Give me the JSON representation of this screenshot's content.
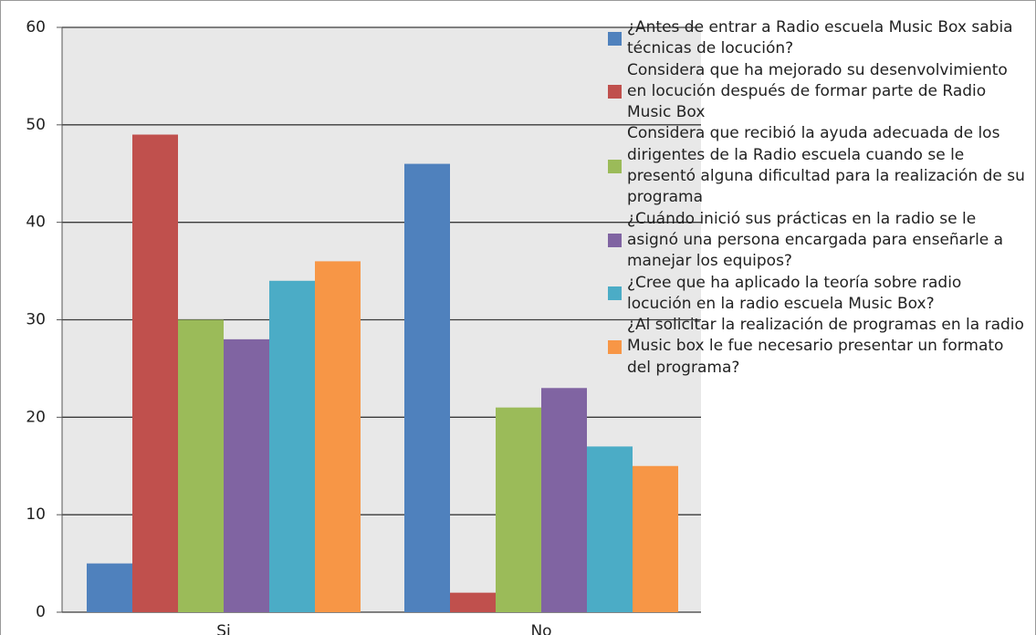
{
  "chart_data": {
    "type": "bar",
    "categories": [
      "Si",
      "No"
    ],
    "series": [
      {
        "name": "¿Antes de entrar a Radio escuela Music Box sabia técnicas de locución?",
        "color": "#4f81bd",
        "values": [
          5,
          46
        ]
      },
      {
        "name": "Considera que ha mejorado su desenvolvimiento en locución después de formar parte de Radio Music Box",
        "color": "#c0504d",
        "values": [
          49,
          2
        ]
      },
      {
        "name": "Considera que recibió la ayuda adecuada de los dirigentes de la Radio escuela cuando se le presentó alguna dificultad para la realización de su programa",
        "color": "#9bbb59",
        "values": [
          30,
          21
        ]
      },
      {
        "name": "¿Cuándo inició sus prácticas en la radio se le asignó una persona encargada para enseñarle a manejar los equipos?",
        "color": "#8064a2",
        "values": [
          28,
          23
        ]
      },
      {
        "name": "¿Cree que ha aplicado la teoría sobre radio locución en la radio escuela Music Box?",
        "color": "#4bacc6",
        "values": [
          34,
          17
        ]
      },
      {
        "name": "¿Al solicitar  la realización de programas en la radio Music box le fue necesario presentar un formato del programa?",
        "color": "#f79646",
        "values": [
          36,
          15
        ]
      }
    ],
    "ylim": [
      0,
      60
    ],
    "yticks": [
      0,
      10,
      20,
      30,
      40,
      50,
      60
    ],
    "grid": true,
    "legend": "right"
  }
}
